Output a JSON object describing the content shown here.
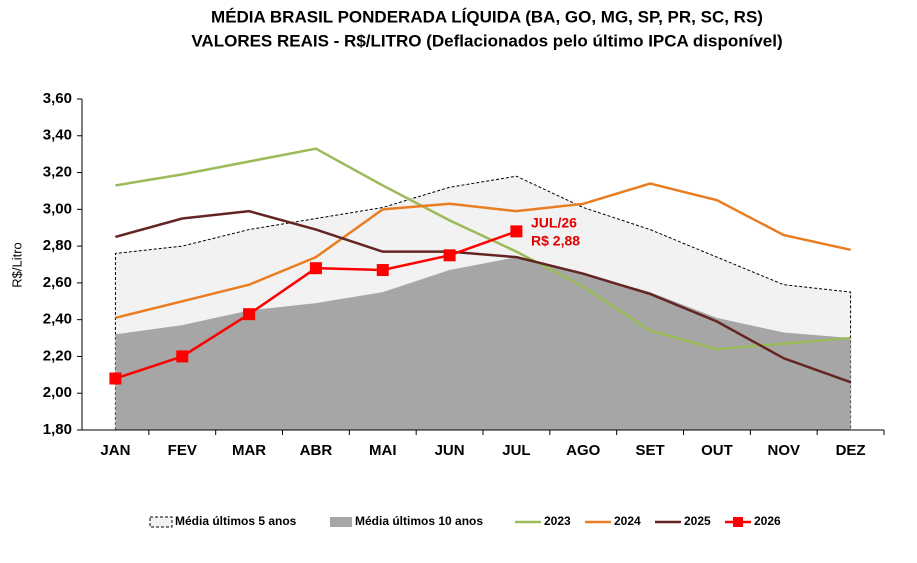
{
  "chart_data": {
    "type": "line",
    "title": [
      "MÉDIA BRASIL PONDERADA LÍQUIDA (BA, GO, MG, SP, PR, SC, RS)",
      "VALORES REAIS - R$/LITRO (Deflacionados  pelo último IPCA disponível)"
    ],
    "y_label": "R$/Litro",
    "categories": [
      "JAN",
      "FEV",
      "MAR",
      "ABR",
      "MAI",
      "JUN",
      "JUL",
      "AGO",
      "SET",
      "OUT",
      "NOV",
      "DEZ"
    ],
    "ylim": [
      1.8,
      3.6
    ],
    "yticks": [
      {
        "value": 1.8,
        "label": "1,80"
      },
      {
        "value": 2.0,
        "label": "2,00"
      },
      {
        "value": 2.2,
        "label": "2,20"
      },
      {
        "value": 2.4,
        "label": "2,40"
      },
      {
        "value": 2.6,
        "label": "2,60"
      },
      {
        "value": 2.8,
        "label": "2,80"
      },
      {
        "value": 3.0,
        "label": "3,00"
      },
      {
        "value": 3.2,
        "label": "3,20"
      },
      {
        "value": 3.4,
        "label": "3,40"
      },
      {
        "value": 3.6,
        "label": "3,60"
      }
    ],
    "grid": false,
    "legend": "bottom",
    "annotation": [
      "JUL/26",
      "R$ 2,88"
    ],
    "series": [
      {
        "name": "Média últimos 5 anos",
        "type": "area",
        "color": "#f2f2f2",
        "border": "dashed",
        "values": [
          2.76,
          2.8,
          2.89,
          2.95,
          3.01,
          3.12,
          3.18,
          3.01,
          2.89,
          2.74,
          2.59,
          2.55
        ]
      },
      {
        "name": "Média últimos 10 anos",
        "type": "area",
        "color": "#a6a6a6",
        "values": [
          2.32,
          2.37,
          2.45,
          2.49,
          2.55,
          2.67,
          2.74,
          2.65,
          2.55,
          2.41,
          2.33,
          2.3
        ]
      },
      {
        "name": "2023",
        "type": "line",
        "color": "#9bbb59",
        "values": [
          3.13,
          3.19,
          3.26,
          3.33,
          3.13,
          2.94,
          2.77,
          2.58,
          2.34,
          2.24,
          2.27,
          2.3
        ]
      },
      {
        "name": "2024",
        "type": "line",
        "color": "#e87d22",
        "values": [
          2.41,
          2.5,
          2.59,
          2.74,
          3.0,
          3.03,
          2.99,
          3.03,
          3.14,
          3.05,
          2.86,
          2.78
        ]
      },
      {
        "name": "2025",
        "type": "line",
        "color": "#632523",
        "values": [
          2.85,
          2.95,
          2.99,
          2.89,
          2.77,
          2.77,
          2.74,
          2.65,
          2.54,
          2.39,
          2.19,
          2.06
        ]
      },
      {
        "name": "2026",
        "type": "line",
        "color": "#ff0000",
        "marker": "square",
        "values": [
          2.08,
          2.2,
          2.43,
          2.68,
          2.67,
          2.75,
          2.88,
          null,
          null,
          null,
          null,
          null
        ]
      }
    ]
  }
}
